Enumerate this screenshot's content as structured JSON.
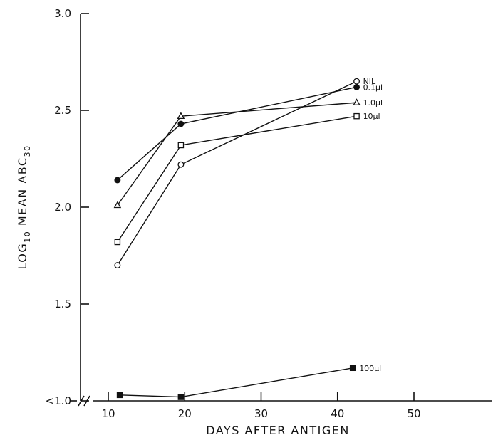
{
  "chart_data": {
    "type": "line",
    "title": "",
    "xlabel": "DAYS AFTER ANTIGEN",
    "ylabel_main": "LOG",
    "ylabel_sub": "10",
    "ylabel_rest": " MEAN ABC",
    "ylabel_sub2": "30",
    "xlim": [
      5,
      50
    ],
    "ylim": [
      1.0,
      3.0
    ],
    "x_ticks": [
      {
        "value": 10,
        "label": "10"
      },
      {
        "value": 20,
        "label": "20"
      },
      {
        "value": 30,
        "label": "30"
      },
      {
        "value": 40,
        "label": "40"
      },
      {
        "value": 50,
        "label": "50"
      }
    ],
    "y_ticks": [
      {
        "value": 1.0,
        "label": "<1.0"
      },
      {
        "value": 1.5,
        "label": "1.5"
      },
      {
        "value": 2.0,
        "label": "2.0"
      },
      {
        "value": 2.5,
        "label": "2.5"
      },
      {
        "value": 3.0,
        "label": "3.0"
      }
    ],
    "grid": false,
    "axis_break": true,
    "series": [
      {
        "name": "NIL",
        "marker": "circle-open",
        "points": [
          {
            "x": 11.2,
            "y": 1.7
          },
          {
            "x": 19.5,
            "y": 2.22
          },
          {
            "x": 42.5,
            "y": 2.65
          }
        ]
      },
      {
        "name": "0.1µl",
        "marker": "circle-filled",
        "points": [
          {
            "x": 11.2,
            "y": 2.14
          },
          {
            "x": 19.5,
            "y": 2.43
          },
          {
            "x": 42.5,
            "y": 2.62
          }
        ]
      },
      {
        "name": "1.0µl",
        "marker": "triangle-open",
        "points": [
          {
            "x": 11.2,
            "y": 2.01
          },
          {
            "x": 19.5,
            "y": 2.47
          },
          {
            "x": 42.5,
            "y": 2.54
          }
        ]
      },
      {
        "name": "10µl",
        "marker": "square-open",
        "points": [
          {
            "x": 11.2,
            "y": 1.82
          },
          {
            "x": 19.5,
            "y": 2.32
          },
          {
            "x": 42.5,
            "y": 2.47
          }
        ]
      },
      {
        "name": "100µl",
        "marker": "square-filled",
        "points": [
          {
            "x": 11.5,
            "y": 1.03
          },
          {
            "x": 19.5,
            "y": 1.02
          },
          {
            "x": 42.0,
            "y": 1.17
          }
        ]
      }
    ]
  }
}
